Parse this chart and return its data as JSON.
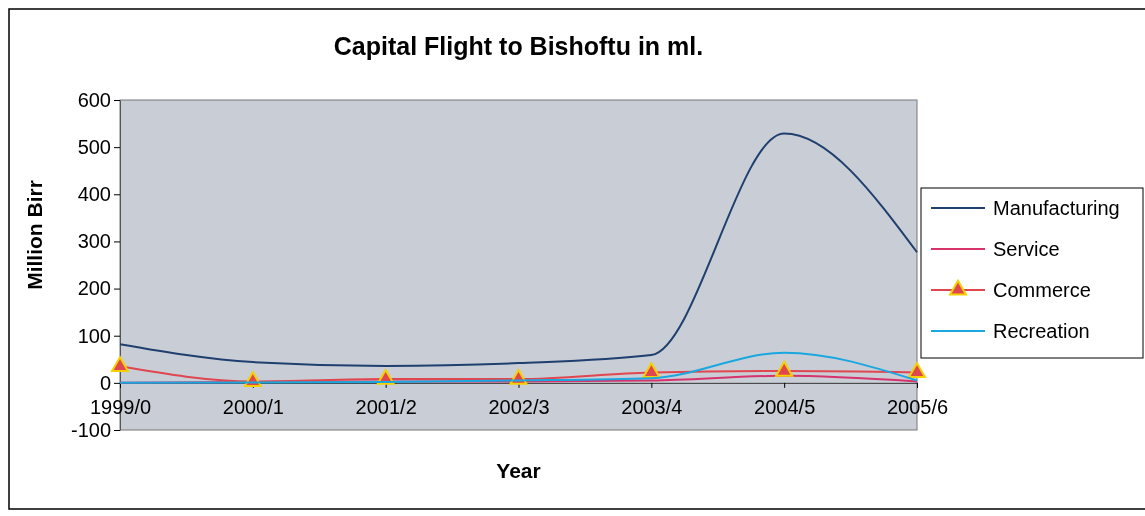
{
  "chart_data": {
    "type": "line",
    "title": "Capital Flight to Bishoftu in ml.",
    "xlabel": "Year",
    "ylabel": "Million Birr",
    "categories": [
      "1999/0",
      "2000/1",
      "2001/2",
      "2002/3",
      "2003/4",
      "2004/5",
      "2005/6"
    ],
    "ylim": [
      -100,
      600
    ],
    "yticks": [
      -100,
      0,
      100,
      200,
      300,
      400,
      500,
      600
    ],
    "grid": false,
    "legend": "right",
    "series": [
      {
        "name": "Manufacturing",
        "color": "#1f3f6e",
        "values": [
          82,
          44,
          36,
          42,
          59,
          529,
          277
        ]
      },
      {
        "name": "Service",
        "color": "#d6336c",
        "values": [
          0,
          2,
          3,
          3,
          5,
          15,
          3
        ]
      },
      {
        "name": "Commerce",
        "color": "#e0464f",
        "marker": "triangle",
        "values": [
          35,
          3,
          8,
          8,
          22,
          25,
          22
        ]
      },
      {
        "name": "Recreation",
        "color": "#1aa7e0",
        "values": [
          0,
          1,
          2,
          5,
          10,
          64,
          5
        ]
      }
    ]
  }
}
